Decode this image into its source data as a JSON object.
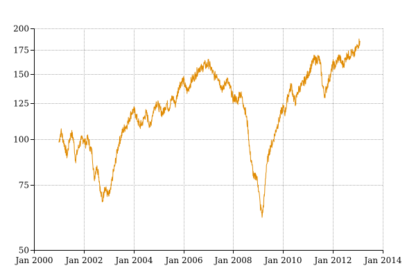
{
  "chart_data": {
    "type": "line",
    "title": "",
    "xlabel": "",
    "ylabel": "",
    "y_scale": "log",
    "ylim": [
      50,
      200
    ],
    "xlim": [
      "2000-01",
      "2014-01"
    ],
    "grid": true,
    "line_color": "#e08a00",
    "y_ticks": [
      50,
      75,
      100,
      125,
      150,
      175,
      200
    ],
    "x_ticks": [
      "Jan 2000",
      "Jan 2002",
      "Jan 2004",
      "Jan 2006",
      "Jan 2008",
      "Jan 2010",
      "Jan 2012",
      "Jan 2014"
    ],
    "series": [
      {
        "x": [
          "2001-01",
          "2001-02",
          "2001-03",
          "2001-04",
          "2001-05",
          "2001-06",
          "2001-07",
          "2001-08",
          "2001-09",
          "2001-10",
          "2001-11",
          "2001-12",
          "2002-01",
          "2002-02",
          "2002-03",
          "2002-04",
          "2002-05",
          "2002-06",
          "2002-07",
          "2002-08",
          "2002-09",
          "2002-10",
          "2002-11",
          "2002-12",
          "2003-01",
          "2003-02",
          "2003-03",
          "2003-04",
          "2003-05",
          "2003-06",
          "2003-07",
          "2003-08",
          "2003-09",
          "2003-10",
          "2003-11",
          "2003-12",
          "2004-01",
          "2004-02",
          "2004-03",
          "2004-04",
          "2004-05",
          "2004-06",
          "2004-07",
          "2004-08",
          "2004-09",
          "2004-10",
          "2004-11",
          "2004-12",
          "2005-01",
          "2005-02",
          "2005-03",
          "2005-04",
          "2005-05",
          "2005-06",
          "2005-07",
          "2005-08",
          "2005-09",
          "2005-10",
          "2005-11",
          "2005-12",
          "2006-01",
          "2006-02",
          "2006-03",
          "2006-04",
          "2006-05",
          "2006-06",
          "2006-07",
          "2006-08",
          "2006-09",
          "2006-10",
          "2006-11",
          "2006-12",
          "2007-01",
          "2007-02",
          "2007-03",
          "2007-04",
          "2007-05",
          "2007-06",
          "2007-07",
          "2007-08",
          "2007-09",
          "2007-10",
          "2007-11",
          "2007-12",
          "2008-01",
          "2008-02",
          "2008-03",
          "2008-04",
          "2008-05",
          "2008-06",
          "2008-07",
          "2008-08",
          "2008-09",
          "2008-10",
          "2008-11",
          "2008-12",
          "2009-01",
          "2009-02",
          "2009-03",
          "2009-04",
          "2009-05",
          "2009-06",
          "2009-07",
          "2009-08",
          "2009-09",
          "2009-10",
          "2009-11",
          "2009-12",
          "2010-01",
          "2010-02",
          "2010-03",
          "2010-04",
          "2010-05",
          "2010-06",
          "2010-07",
          "2010-08",
          "2010-09",
          "2010-10",
          "2010-11",
          "2010-12",
          "2011-01",
          "2011-02",
          "2011-03",
          "2011-04",
          "2011-05",
          "2011-06",
          "2011-07",
          "2011-08",
          "2011-09",
          "2011-10",
          "2011-11",
          "2011-12",
          "2012-01",
          "2012-02",
          "2012-03",
          "2012-04",
          "2012-05",
          "2012-06",
          "2012-07",
          "2012-08",
          "2012-09",
          "2012-10",
          "2012-11",
          "2012-12",
          "2013-01",
          "2013-02"
        ],
        "values": [
          98,
          105,
          100,
          95,
          90,
          99,
          104,
          100,
          88,
          93,
          97,
          100,
          100,
          97,
          101,
          95,
          92,
          78,
          84,
          82,
          72,
          68,
          74,
          72,
          70,
          73,
          80,
          85,
          92,
          98,
          102,
          106,
          108,
          110,
          114,
          118,
          120,
          117,
          112,
          109,
          110,
          114,
          118,
          113,
          108,
          116,
          122,
          126,
          123,
          120,
          117,
          122,
          125,
          121,
          127,
          130,
          124,
          132,
          140,
          143,
          145,
          138,
          135,
          140,
          145,
          147,
          150,
          154,
          157,
          155,
          160,
          158,
          161,
          157,
          152,
          148,
          150,
          146,
          140,
          136,
          142,
          145,
          140,
          135,
          128,
          130,
          125,
          134,
          131,
          124,
          118,
          108,
          92,
          85,
          78,
          80,
          75,
          66,
          62,
          70,
          85,
          90,
          96,
          98,
          103,
          108,
          112,
          118,
          122,
          118,
          128,
          135,
          140,
          130,
          126,
          134,
          138,
          140,
          143,
          146,
          150,
          155,
          160,
          165,
          163,
          167,
          160,
          140,
          132,
          138,
          145,
          150,
          160,
          158,
          163,
          168,
          162,
          159,
          165,
          170,
          168,
          173,
          168,
          175,
          180,
          185
        ]
      }
    ]
  }
}
